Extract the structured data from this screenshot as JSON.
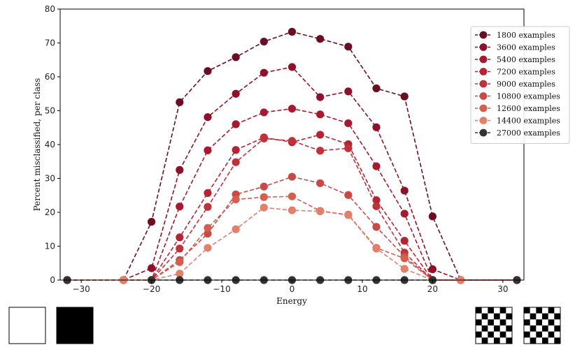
{
  "chart_data": {
    "type": "line",
    "title": "",
    "xlabel": "Energy",
    "ylabel": "Percent misclassified, per class",
    "xlim": [
      -33,
      33
    ],
    "ylim": [
      0,
      80
    ],
    "xticks": [
      -30,
      -20,
      -10,
      0,
      10,
      20,
      30
    ],
    "xtick_labels": [
      "−30",
      "−20",
      "−10",
      "0",
      "10",
      "20",
      "30"
    ],
    "yticks": [
      0,
      10,
      20,
      30,
      40,
      50,
      60,
      70,
      80
    ],
    "ytick_labels": [
      "0",
      "10",
      "20",
      "30",
      "40",
      "50",
      "60",
      "70",
      "80"
    ],
    "grid": false,
    "legend_position": "top-right",
    "x": [
      -32,
      -24,
      -20,
      -16,
      -12,
      -8,
      -4,
      0,
      4,
      8,
      12,
      16,
      20,
      24,
      32
    ],
    "series": [
      {
        "name": "1800 examples",
        "color": "#6b0e22",
        "values": [
          0,
          0,
          17.2,
          52.5,
          61.7,
          65.8,
          70.4,
          73.3,
          71.2,
          68.9,
          56.6,
          54.2,
          18.8,
          0,
          0
        ]
      },
      {
        "name": "3600 examples",
        "color": "#8f1129",
        "values": [
          0,
          0,
          3.5,
          32.5,
          48.1,
          55.0,
          61.2,
          62.9,
          54.0,
          55.7,
          45.1,
          26.4,
          3.2,
          0,
          0
        ]
      },
      {
        "name": "5400 examples",
        "color": "#a6192e",
        "values": [
          0,
          0,
          0,
          21.7,
          38.3,
          46.0,
          49.5,
          50.6,
          48.9,
          46.3,
          33.6,
          19.6,
          0,
          0,
          0
        ]
      },
      {
        "name": "7200 examples",
        "color": "#b52435",
        "values": [
          0,
          0,
          0,
          12.6,
          25.7,
          38.4,
          42.1,
          40.7,
          42.9,
          40.1,
          23.6,
          11.6,
          0,
          0,
          0
        ]
      },
      {
        "name": "9000 examples",
        "color": "#c0323b",
        "values": [
          0,
          0,
          0,
          9.3,
          21.6,
          34.8,
          41.8,
          41.1,
          38.2,
          38.9,
          21.8,
          8.1,
          0,
          0,
          0
        ]
      },
      {
        "name": "10800 examples",
        "color": "#c94a45",
        "values": [
          0,
          0,
          0,
          5.9,
          13.7,
          25.3,
          27.6,
          30.5,
          28.6,
          25.1,
          15.7,
          7.0,
          0,
          0,
          0
        ]
      },
      {
        "name": "12600 examples",
        "color": "#d35f4e",
        "values": [
          0,
          0,
          0,
          5.3,
          15.4,
          23.8,
          24.5,
          24.7,
          20.4,
          19.3,
          9.5,
          6.4,
          0,
          0,
          0
        ]
      },
      {
        "name": "14400 examples",
        "color": "#e2806a",
        "values": [
          0,
          0,
          0,
          1.9,
          9.5,
          15.0,
          21.4,
          20.6,
          20.3,
          19.2,
          9.3,
          3.3,
          0,
          0,
          0
        ]
      },
      {
        "name": "27000 examples",
        "color": "#333333",
        "values": [
          0,
          null,
          0,
          0,
          0,
          0,
          0,
          0,
          0,
          0,
          0,
          0,
          0,
          null,
          0
        ]
      }
    ]
  },
  "thumbnails": [
    {
      "name": "white-square",
      "fill": "#ffffff"
    },
    {
      "name": "black-square",
      "fill": "#000000"
    },
    {
      "name": "checkerboard-a"
    },
    {
      "name": "checkerboard-b"
    }
  ]
}
